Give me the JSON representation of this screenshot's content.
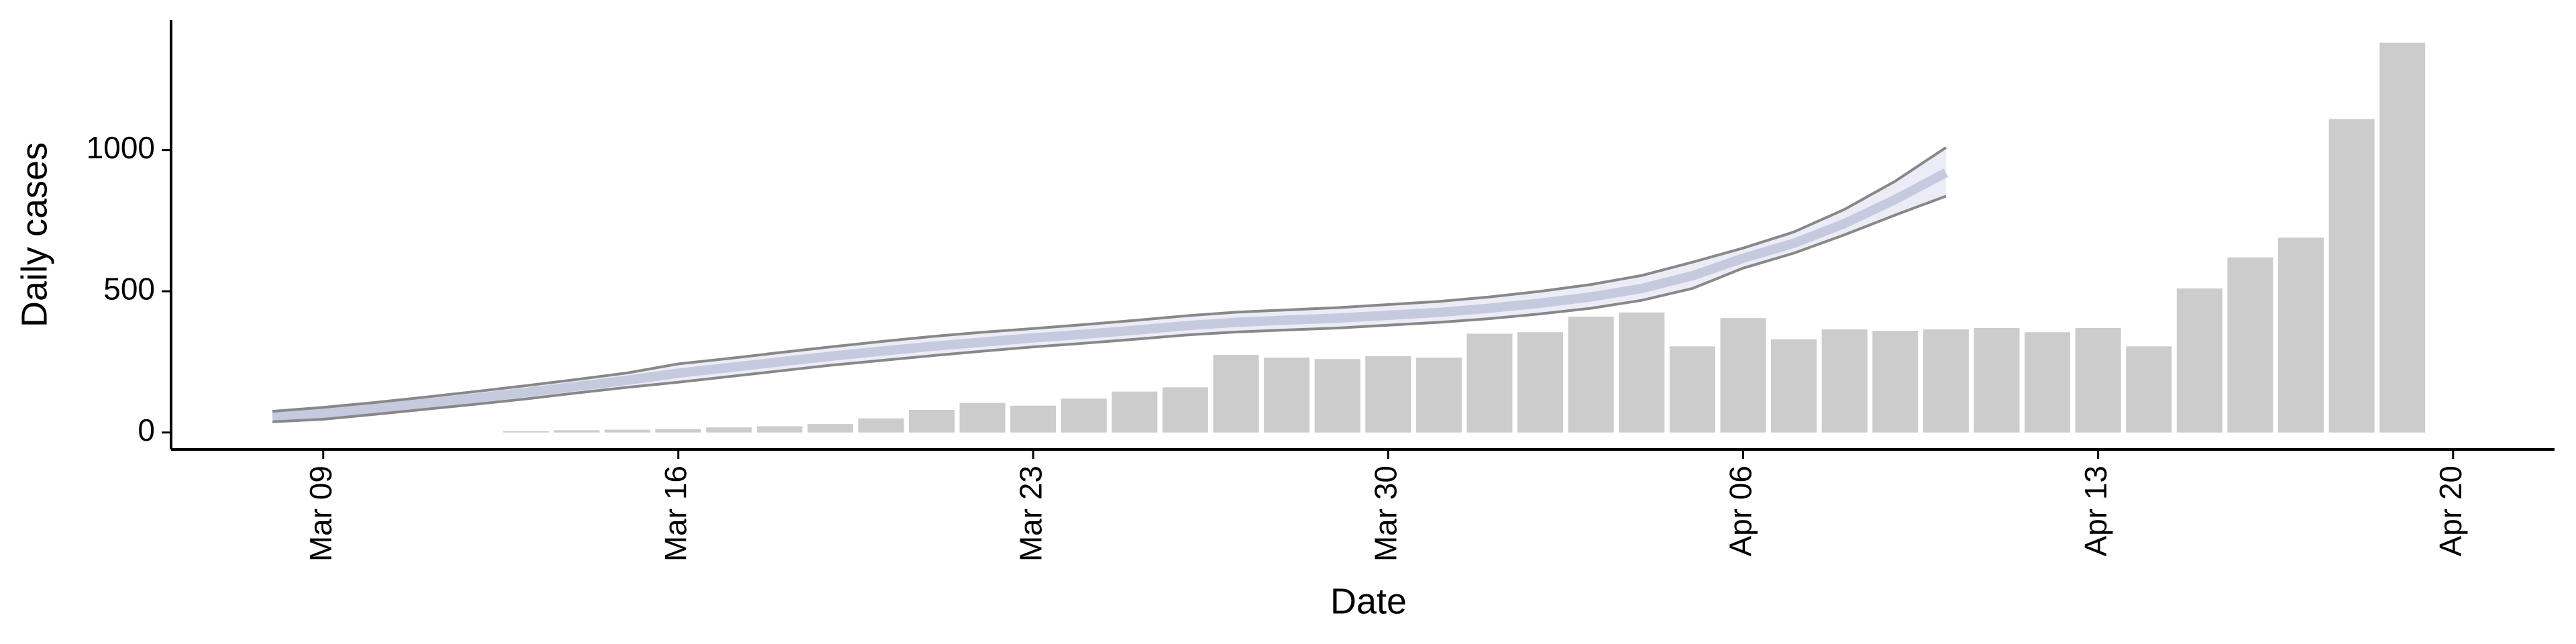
{
  "chart_data": {
    "type": "bar",
    "x_label": "Date",
    "y_label": "Daily cases",
    "x": [
      "Mar 13",
      "Mar 14",
      "Mar 15",
      "Mar 16",
      "Mar 17",
      "Mar 18",
      "Mar 19",
      "Mar 20",
      "Mar 21",
      "Mar 22",
      "Mar 23",
      "Mar 24",
      "Mar 25",
      "Mar 26",
      "Mar 27",
      "Mar 28",
      "Mar 29",
      "Mar 30",
      "Mar 31",
      "Apr 01",
      "Apr 02",
      "Apr 03",
      "Apr 04",
      "Apr 05",
      "Apr 06",
      "Apr 07",
      "Apr 08",
      "Apr 09",
      "Apr 10",
      "Apr 11",
      "Apr 12",
      "Apr 13",
      "Apr 14",
      "Apr 15",
      "Apr 16",
      "Apr 17",
      "Apr 18",
      "Apr 19"
    ],
    "values": [
      5,
      8,
      10,
      12,
      18,
      22,
      30,
      50,
      80,
      105,
      95,
      120,
      145,
      160,
      275,
      265,
      260,
      270,
      265,
      350,
      355,
      410,
      425,
      305,
      405,
      330,
      365,
      360,
      365,
      370,
      355,
      370,
      305,
      510,
      620,
      690,
      1110,
      1380
    ],
    "color": "#cccccc",
    "forecast": {
      "x": [
        "Mar 08",
        "Mar 09",
        "Mar 10",
        "Mar 11",
        "Mar 12",
        "Mar 13",
        "Mar 14",
        "Mar 15",
        "Mar 16",
        "Mar 17",
        "Mar 18",
        "Mar 19",
        "Mar 20",
        "Mar 21",
        "Mar 22",
        "Mar 23",
        "Mar 24",
        "Mar 25",
        "Mar 26",
        "Mar 27",
        "Mar 28",
        "Mar 29",
        "Mar 30",
        "Mar 31",
        "Apr 01",
        "Apr 02",
        "Apr 03",
        "Apr 04",
        "Apr 05",
        "Apr 06",
        "Apr 07",
        "Apr 08",
        "Apr 09",
        "Apr 10"
      ],
      "median": [
        55,
        68,
        85,
        103,
        122,
        142,
        163,
        185,
        210,
        230,
        250,
        270,
        288,
        305,
        320,
        335,
        348,
        362,
        378,
        390,
        398,
        405,
        415,
        425,
        440,
        458,
        480,
        510,
        555,
        617,
        670,
        740,
        825,
        920
      ],
      "upper": [
        75,
        89,
        106,
        125,
        145,
        166,
        188,
        211,
        243,
        262,
        283,
        303,
        322,
        340,
        355,
        368,
        382,
        397,
        413,
        426,
        434,
        442,
        453,
        464,
        480,
        500,
        524,
        556,
        603,
        653,
        710,
        790,
        890,
        1009
      ],
      "lower": [
        38,
        47,
        64,
        82,
        100,
        119,
        140,
        160,
        178,
        198,
        218,
        238,
        255,
        272,
        288,
        303,
        316,
        330,
        345,
        356,
        363,
        370,
        380,
        390,
        403,
        420,
        440,
        468,
        510,
        582,
        635,
        700,
        770,
        837
      ],
      "line_color": "#888888",
      "band_color": "#dde0ee",
      "median_color": "#c5cadf"
    },
    "xlim": [
      "Mar 06",
      "Apr 22"
    ],
    "xticks": [
      "Mar 09",
      "Mar 16",
      "Mar 23",
      "Mar 30",
      "Apr 06",
      "Apr 13",
      "Apr 20"
    ],
    "ylim": [
      -60,
      1460
    ],
    "yticks": [
      0,
      500,
      1000
    ]
  }
}
